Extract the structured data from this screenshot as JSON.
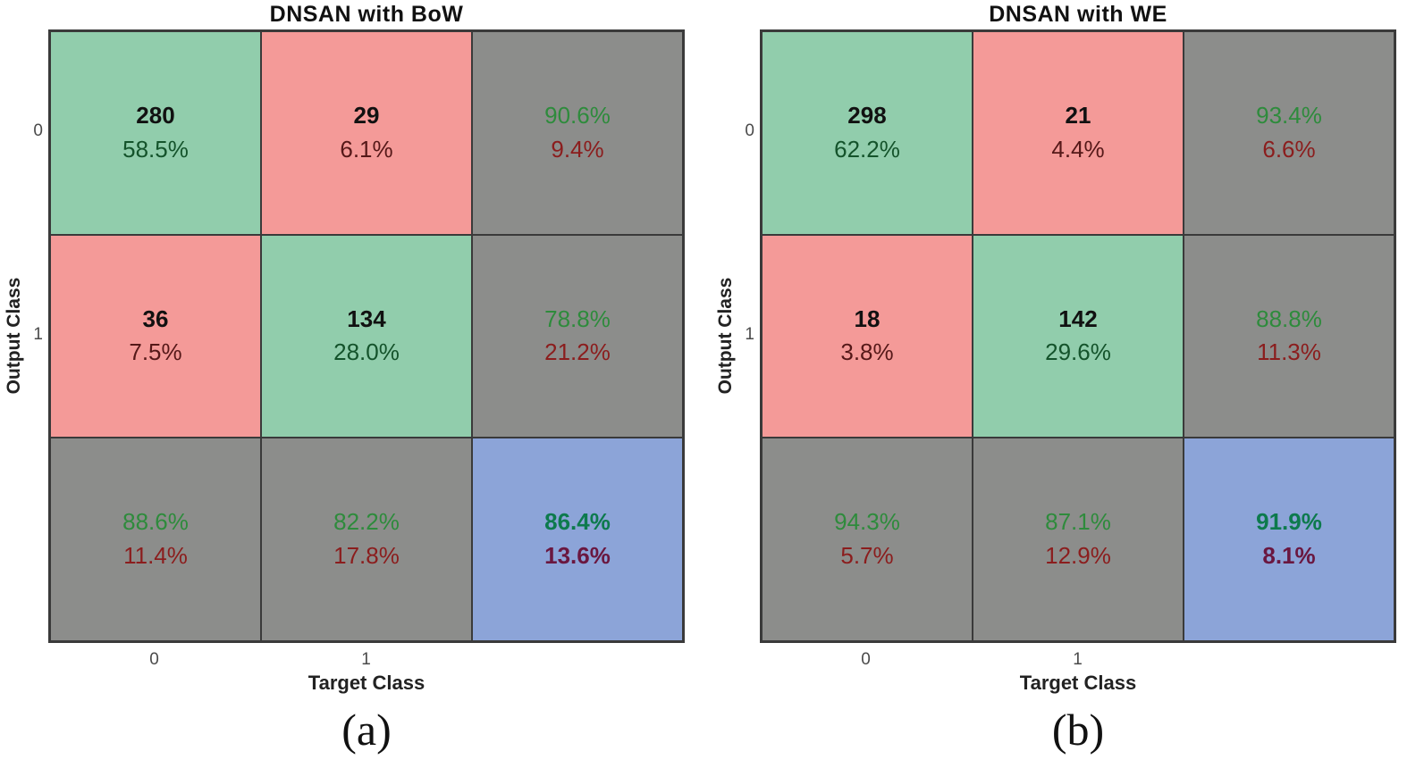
{
  "figure": {
    "background": "#ffffff"
  },
  "colors": {
    "correct_cell": "#91CDAC",
    "incorrect_cell": "#F49A98",
    "summary_cell": "#8C8D8B",
    "total_cell": "#8CA4D8",
    "grid_border": "#3a3a3a",
    "count_text": "#111111",
    "green_cell_pct_text": "#14532b",
    "red_cell_pct_text": "#551818",
    "summary_green_text": "#2e8b3c",
    "summary_red_text": "#8b1d1d",
    "total_green_text": "#0d7a4d",
    "total_red_text": "#6a1740"
  },
  "chart_data": [
    {
      "type": "heatmap",
      "title": "DNSAN with BoW",
      "xlabel": "Target Class",
      "ylabel": "Output Class",
      "x_tick_labels": [
        "0",
        "1"
      ],
      "y_tick_labels": [
        "0",
        "1"
      ],
      "caption": "(a)",
      "legend_position": "none",
      "grid": "on",
      "cells": [
        [
          {
            "kind": "count",
            "bg": "green",
            "line1": "280",
            "line2": "58.5%"
          },
          {
            "kind": "count",
            "bg": "red",
            "line1": "29",
            "line2": "6.1%"
          },
          {
            "kind": "summary",
            "bg": "gray",
            "line1": "90.6%",
            "line2": "9.4%"
          }
        ],
        [
          {
            "kind": "count",
            "bg": "red",
            "line1": "36",
            "line2": "7.5%"
          },
          {
            "kind": "count",
            "bg": "green",
            "line1": "134",
            "line2": "28.0%"
          },
          {
            "kind": "summary",
            "bg": "gray",
            "line1": "78.8%",
            "line2": "21.2%"
          }
        ],
        [
          {
            "kind": "summary",
            "bg": "gray",
            "line1": "88.6%",
            "line2": "11.4%"
          },
          {
            "kind": "summary",
            "bg": "gray",
            "line1": "82.2%",
            "line2": "17.8%"
          },
          {
            "kind": "total",
            "bg": "blue",
            "line1": "86.4%",
            "line2": "13.6%"
          }
        ]
      ]
    },
    {
      "type": "heatmap",
      "title": "DNSAN with WE",
      "xlabel": "Target Class",
      "ylabel": "Output Class",
      "x_tick_labels": [
        "0",
        "1"
      ],
      "y_tick_labels": [
        "0",
        "1"
      ],
      "caption": "(b)",
      "legend_position": "none",
      "grid": "on",
      "cells": [
        [
          {
            "kind": "count",
            "bg": "green",
            "line1": "298",
            "line2": "62.2%"
          },
          {
            "kind": "count",
            "bg": "red",
            "line1": "21",
            "line2": "4.4%"
          },
          {
            "kind": "summary",
            "bg": "gray",
            "line1": "93.4%",
            "line2": "6.6%"
          }
        ],
        [
          {
            "kind": "count",
            "bg": "red",
            "line1": "18",
            "line2": "3.8%"
          },
          {
            "kind": "count",
            "bg": "green",
            "line1": "142",
            "line2": "29.6%"
          },
          {
            "kind": "summary",
            "bg": "gray",
            "line1": "88.8%",
            "line2": "11.3%"
          }
        ],
        [
          {
            "kind": "summary",
            "bg": "gray",
            "line1": "94.3%",
            "line2": "5.7%"
          },
          {
            "kind": "summary",
            "bg": "gray",
            "line1": "87.1%",
            "line2": "12.9%"
          },
          {
            "kind": "total",
            "bg": "blue",
            "line1": "91.9%",
            "line2": "8.1%"
          }
        ]
      ]
    }
  ]
}
